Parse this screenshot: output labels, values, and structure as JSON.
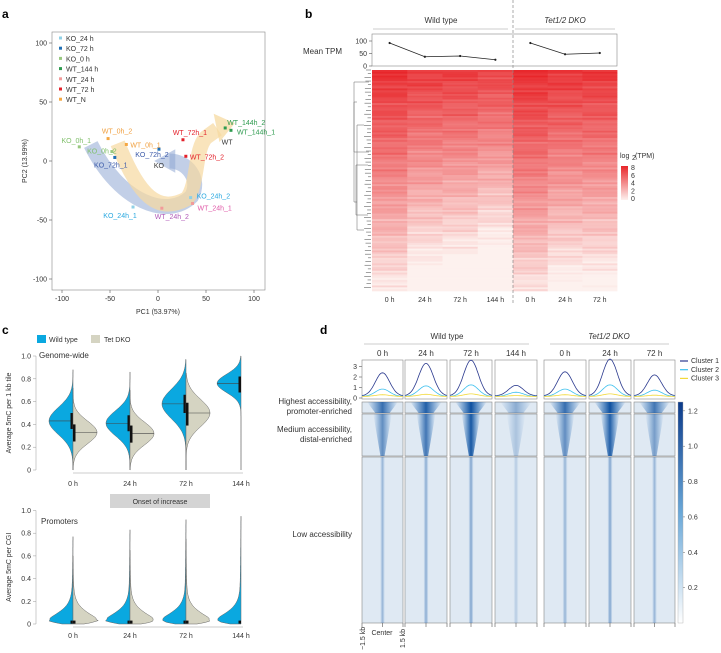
{
  "chart_data": [
    {
      "panel_label": "a",
      "type": "scatter",
      "xlabel": "PC1 (53.97%)",
      "ylabel": "PC2 (13.99%)",
      "xlim": [
        -110,
        110
      ],
      "ylim": [
        -110,
        110
      ],
      "xticks": [
        "-100",
        "-50",
        "0",
        "50",
        "100"
      ],
      "yticks": [
        "100",
        "50",
        "0",
        "-50",
        "-100"
      ],
      "grid": false,
      "legend_position": "top-left",
      "legend": [
        {
          "label": "KO_24 h",
          "color": "#8fd0e6"
        },
        {
          "label": "KO_72 h",
          "color": "#1f6fb5"
        },
        {
          "label": "KO_0 h",
          "color": "#98c87f"
        },
        {
          "label": "WT_144 h",
          "color": "#2e9b4f"
        },
        {
          "label": "WT_24 h",
          "color": "#f29a9a"
        },
        {
          "label": "WT_72 h",
          "color": "#e3202a"
        },
        {
          "label": "WT_N",
          "color": "#f5a742"
        }
      ],
      "points": [
        {
          "label": "KO_0h_1",
          "x": -82,
          "y": 12,
          "group": 2,
          "label_color": "#7fbf6a"
        },
        {
          "label": "KO_0h_2",
          "x": -48,
          "y": 8,
          "group": 2,
          "label_color": "#7fbf6a"
        },
        {
          "label": "KO_72h_1",
          "x": -45,
          "y": 3,
          "group": 1,
          "label_color": "#3a59a8"
        },
        {
          "label": "KO_72h_2",
          "x": 1,
          "y": 10,
          "group": 1,
          "label_color": "#3a59a8"
        },
        {
          "label": "WT_0h_2",
          "x": -52,
          "y": 19,
          "group": 6,
          "label_color": "#f0a040"
        },
        {
          "label": "WT_0h_1",
          "x": -33,
          "y": 14,
          "group": 6,
          "label_color": "#f0a040"
        },
        {
          "label": "WT_72h_1",
          "x": 26,
          "y": 18,
          "group": 5,
          "label_color": "#e3202a"
        },
        {
          "label": "WT_72h_2",
          "x": 29,
          "y": 4,
          "group": 5,
          "label_color": "#e3202a"
        },
        {
          "label": "WT_144h_2",
          "x": 70,
          "y": 28,
          "group": 3,
          "label_color": "#2e9b4f"
        },
        {
          "label": "WT_144h_1",
          "x": 76,
          "y": 26,
          "group": 3,
          "label_color": "#2e9b4f"
        },
        {
          "label": "KO_24h_1",
          "x": -26,
          "y": -39,
          "group": 0,
          "label_color": "#29a8e0"
        },
        {
          "label": "KO_24h_2",
          "x": 34,
          "y": -31,
          "group": 0,
          "label_color": "#29a8e0"
        },
        {
          "label": "WT_24h_1",
          "x": 36,
          "y": -36,
          "group": 4,
          "label_color": "#e05aa8"
        },
        {
          "label": "WT_24h_2",
          "x": 4,
          "y": -40,
          "group": 4,
          "label_color": "#b05ab8"
        }
      ],
      "annotations": [
        {
          "text": "WT",
          "x": 72,
          "y": 14
        },
        {
          "text": "KO",
          "x": 1,
          "y": -6
        }
      ]
    },
    {
      "panel_label": "b",
      "type": "heatmap",
      "groups": [
        {
          "label": "Wild type",
          "italic": false,
          "columns": [
            "0 h",
            "24 h",
            "72 h",
            "144 h"
          ]
        },
        {
          "label": "Tet1/2 DKO",
          "italic": true,
          "columns": [
            "0 h",
            "24 h",
            "72 h"
          ]
        }
      ],
      "line_panel": {
        "ylabel": "Mean TPM",
        "yticks": [
          "100",
          "50",
          "0"
        ],
        "ylim": [
          0,
          110
        ],
        "values": [
          92,
          37,
          40,
          25,
          92,
          47,
          52
        ]
      },
      "column_mean_log2tpm": [
        4.6,
        3.7,
        3.5,
        3.0,
        4.8,
        4.1,
        4.1
      ],
      "colorbar": {
        "title": "log",
        "subscript": "2",
        "title_suffix": "(TPM)",
        "ticks": [
          "8",
          "6",
          "4",
          "2",
          "0"
        ],
        "range": [
          0,
          8
        ],
        "low_color": "#fdf1ee",
        "high_color": "#e8262a"
      }
    },
    {
      "panel_label": "c",
      "type": "violin",
      "legend": [
        {
          "label": "Wild type",
          "color": "#0aa8e0"
        },
        {
          "label": "Tet DKO",
          "color": "#d5d4c2"
        }
      ],
      "title": "Genome-wide",
      "ylabel": "Average 5mC per 1 kb tile",
      "ylim": [
        0,
        1
      ],
      "yticks": [
        "1.0",
        "0.8",
        "0.6",
        "0.4",
        "0.2",
        "0"
      ],
      "categories": [
        "0 h",
        "24 h",
        "72 h",
        "144 h"
      ],
      "series": [
        {
          "name": "Wild type",
          "median": [
            0.43,
            0.41,
            0.58,
            0.76
          ],
          "q1": [
            0.36,
            0.34,
            0.5,
            0.68
          ],
          "q3": [
            0.5,
            0.48,
            0.66,
            0.82
          ],
          "sd": [
            0.12,
            0.11,
            0.13,
            0.08
          ],
          "min": [
            0.0,
            0.0,
            0.0,
            0.0
          ],
          "max": [
            0.88,
            0.86,
            0.97,
            1.0
          ]
        },
        {
          "name": "Tet DKO",
          "median": [
            0.33,
            0.32,
            0.5,
            null
          ],
          "q1": [
            0.25,
            0.24,
            0.39,
            null
          ],
          "q3": [
            0.4,
            0.39,
            0.59,
            null
          ],
          "sd": [
            0.1,
            0.1,
            0.12,
            null
          ],
          "min": [
            0.0,
            0.0,
            0.0,
            null
          ],
          "max": [
            0.72,
            0.7,
            0.85,
            null
          ]
        }
      ],
      "annotation": "Onset of increase"
    },
    {
      "panel_label": "",
      "type": "violin",
      "title": "Promoters",
      "ylabel": "Average 5mC per CGI",
      "ylim": [
        0,
        1
      ],
      "yticks": [
        "1.0",
        "0.8",
        "0.6",
        "0.4",
        "0.2",
        "0"
      ],
      "categories": [
        "0 h",
        "24 h",
        "72 h",
        "144 h"
      ],
      "series": [
        {
          "name": "Wild type",
          "median": [
            0.01,
            0.01,
            0.01,
            0.01
          ],
          "max": [
            0.77,
            0.83,
            0.92,
            0.95
          ]
        },
        {
          "name": "Tet DKO",
          "median": [
            0.01,
            0.01,
            0.01,
            null
          ],
          "max": [
            0.6,
            0.65,
            0.75,
            null
          ]
        }
      ]
    },
    {
      "panel_label": "d",
      "type": "heatmap",
      "groups": [
        {
          "label": "Wild type",
          "italic": false,
          "columns": [
            "0 h",
            "24 h",
            "72 h",
            "144 h"
          ]
        },
        {
          "label": "Tet1/2 DKO",
          "italic": true,
          "columns": [
            "0 h",
            "24 h",
            "72 h"
          ]
        }
      ],
      "profile": {
        "yticks": [
          "3",
          "2",
          "1",
          "0"
        ],
        "ylim": [
          0,
          3.7
        ],
        "series": [
          {
            "name": "Cluster 1",
            "color": "#2b3a8f",
            "peaks": [
              2.2,
              3.1,
              3.4,
              1.0,
              2.3,
              3.5,
              2.0
            ]
          },
          {
            "name": "Cluster 2",
            "color": "#3cc0ee",
            "peaks": [
              0.7,
              1.0,
              1.1,
              0.4,
              0.7,
              1.1,
              0.6
            ]
          },
          {
            "name": "Cluster 3",
            "color": "#f2d93a",
            "peaks": [
              0.2,
              0.25,
              0.3,
              0.1,
              0.2,
              0.3,
              0.15
            ]
          }
        ]
      },
      "row_clusters": [
        {
          "label_lines": [
            "Highest accessibility,",
            "promoter-enriched"
          ],
          "intensity": [
            0.8,
            0.9,
            1.0,
            0.4,
            0.8,
            1.0,
            0.75
          ]
        },
        {
          "label_lines": [
            "Medium accessibility,",
            "distal-enriched"
          ],
          "intensity": [
            0.6,
            0.75,
            0.95,
            0.25,
            0.6,
            0.9,
            0.5
          ]
        },
        {
          "label_lines": [
            "Low accessibility"
          ],
          "intensity": [
            0.35,
            0.4,
            0.45,
            0.2,
            0.35,
            0.45,
            0.35
          ]
        }
      ],
      "xticks": [
        "−1.5 kb",
        "Center",
        "1.5 kb"
      ],
      "colorbar": {
        "ticks": [
          "1.2",
          "1.0",
          "0.8",
          "0.6",
          "0.4",
          "0.2"
        ],
        "values": [
          1.2,
          1.0,
          0.8,
          0.6,
          0.4,
          0.2
        ],
        "range": [
          0,
          1.25
        ],
        "low_color": "#ffffff",
        "high_color": "#0b3a8a"
      }
    }
  ]
}
